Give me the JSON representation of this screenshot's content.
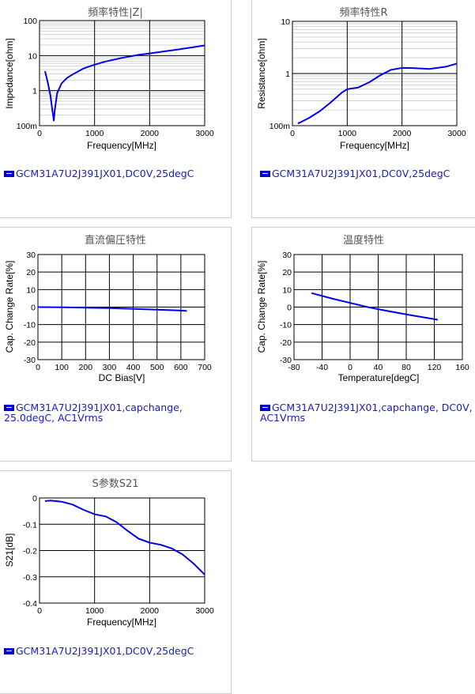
{
  "chart_data": [
    {
      "id": "impedance",
      "type": "line",
      "title": "頻率特性|Z|",
      "xlabel": "Frequency[MHz]",
      "ylabel": "Impedance[ohm]",
      "xscale": "linear",
      "yscale": "log",
      "xlim": [
        0,
        3000
      ],
      "ylim": [
        0.1,
        100
      ],
      "xticks": [
        0,
        1000,
        2000,
        3000
      ],
      "xtick_labels": [
        "0",
        "1000",
        "2000",
        "3000"
      ],
      "yticks": [
        0.1,
        1,
        10,
        100
      ],
      "ytick_labels": [
        "100m",
        "1",
        "10",
        "100"
      ],
      "series": [
        {
          "color": "#0000ee",
          "x": [
            100,
            150,
            200,
            230,
            260,
            280,
            320,
            400,
            500,
            600,
            800,
            1000,
            1200,
            1500,
            1800,
            2000,
            2200,
            2500,
            2800,
            3000
          ],
          "y": [
            3.6,
            1.7,
            0.7,
            0.3,
            0.14,
            0.3,
            0.85,
            1.6,
            2.3,
            2.9,
            4.3,
            5.5,
            6.8,
            8.6,
            10.5,
            11.5,
            12.8,
            14.9,
            17.5,
            19.5
          ]
        }
      ],
      "legend": "GCM31A7U2J391JX01,DC0V,25degC"
    },
    {
      "id": "resistance",
      "type": "line",
      "title": "頻率特性R",
      "xlabel": "Frequency[MHz]",
      "ylabel": "Resistance[ohm]",
      "xscale": "linear",
      "yscale": "log",
      "xlim": [
        0,
        3000
      ],
      "ylim": [
        0.1,
        10
      ],
      "xticks": [
        0,
        1000,
        2000,
        3000
      ],
      "xtick_labels": [
        "0",
        "1000",
        "2000",
        "3000"
      ],
      "yticks": [
        0.1,
        1,
        10
      ],
      "ytick_labels": [
        "100m",
        "1",
        "10"
      ],
      "series": [
        {
          "color": "#0000ee",
          "x": [
            100,
            300,
            500,
            700,
            900,
            1000,
            1100,
            1200,
            1400,
            1600,
            1800,
            2000,
            2200,
            2500,
            2800,
            3000
          ],
          "y": [
            0.11,
            0.14,
            0.19,
            0.28,
            0.43,
            0.5,
            0.52,
            0.54,
            0.68,
            0.92,
            1.18,
            1.28,
            1.27,
            1.22,
            1.35,
            1.55
          ]
        }
      ],
      "legend": "GCM31A7U2J391JX01,DC0V,25degC"
    },
    {
      "id": "dcbias",
      "type": "line",
      "title": "直流偏圧特性",
      "xlabel": "DC Bias[V]",
      "ylabel": "Cap. Change Rate[%]",
      "xlim": [
        0,
        700
      ],
      "ylim": [
        -30,
        30
      ],
      "xticks": [
        0,
        100,
        200,
        300,
        400,
        500,
        600,
        700
      ],
      "xtick_labels": [
        "0",
        "100",
        "200",
        "300",
        "400",
        "500",
        "600",
        "700"
      ],
      "yticks": [
        -30,
        -20,
        -10,
        0,
        10,
        20,
        30
      ],
      "ytick_labels": [
        "-30",
        "-20",
        "-10",
        "0",
        "10",
        "20",
        "30"
      ],
      "series": [
        {
          "color": "#0000ee",
          "x": [
            0,
            100,
            200,
            300,
            400,
            500,
            600,
            625
          ],
          "y": [
            0,
            -0.1,
            -0.3,
            -0.6,
            -1.0,
            -1.5,
            -2.0,
            -2.2
          ]
        }
      ],
      "legend": "GCM31A7U2J391JX01,capchange, 25.0degC, AC1Vrms"
    },
    {
      "id": "temperature",
      "type": "line",
      "title": "温度特性",
      "xlabel": "Temperature[degC]",
      "ylabel": "Cap. Change Rate[%]",
      "xlim": [
        -80,
        160
      ],
      "ylim": [
        -30,
        30
      ],
      "xticks": [
        -80,
        -40,
        0,
        40,
        80,
        120,
        160
      ],
      "xtick_labels": [
        "-80",
        "-40",
        "0",
        "40",
        "80",
        "120",
        "160"
      ],
      "yticks": [
        -30,
        -20,
        -10,
        0,
        10,
        20,
        30
      ],
      "ytick_labels": [
        "-30",
        "-20",
        "-10",
        "0",
        "10",
        "20",
        "30"
      ],
      "series": [
        {
          "color": "#0000ee",
          "x": [
            -55,
            -25,
            0,
            25,
            50,
            85,
            125
          ],
          "y": [
            8.0,
            4.8,
            2.4,
            0.0,
            -2.0,
            -4.5,
            -7.2
          ]
        }
      ],
      "legend": "GCM31A7U2J391JX01,capchange, DC0V, AC1Vrms"
    },
    {
      "id": "s21",
      "type": "line",
      "title": "S参数S21",
      "xlabel": "Frequency[MHz]",
      "ylabel": "S21[dB]",
      "xlim": [
        0,
        3000
      ],
      "ylim": [
        -0.4,
        0
      ],
      "xticks": [
        0,
        1000,
        2000,
        3000
      ],
      "xtick_labels": [
        "0",
        "1000",
        "2000",
        "3000"
      ],
      "yticks": [
        -0.4,
        -0.3,
        -0.2,
        -0.1,
        0
      ],
      "ytick_labels": [
        "-0.4",
        "-0.3",
        "-0.2",
        "-0.1",
        "0"
      ],
      "series": [
        {
          "color": "#0000ee",
          "x": [
            100,
            200,
            400,
            600,
            800,
            1000,
            1200,
            1400,
            1600,
            1800,
            2000,
            2200,
            2400,
            2600,
            2800,
            3000
          ],
          "y": [
            -0.012,
            -0.01,
            -0.014,
            -0.025,
            -0.045,
            -0.062,
            -0.07,
            -0.092,
            -0.125,
            -0.155,
            -0.17,
            -0.178,
            -0.192,
            -0.215,
            -0.25,
            -0.292
          ]
        }
      ],
      "legend": "GCM31A7U2J391JX01,DC0V,25degC"
    }
  ]
}
